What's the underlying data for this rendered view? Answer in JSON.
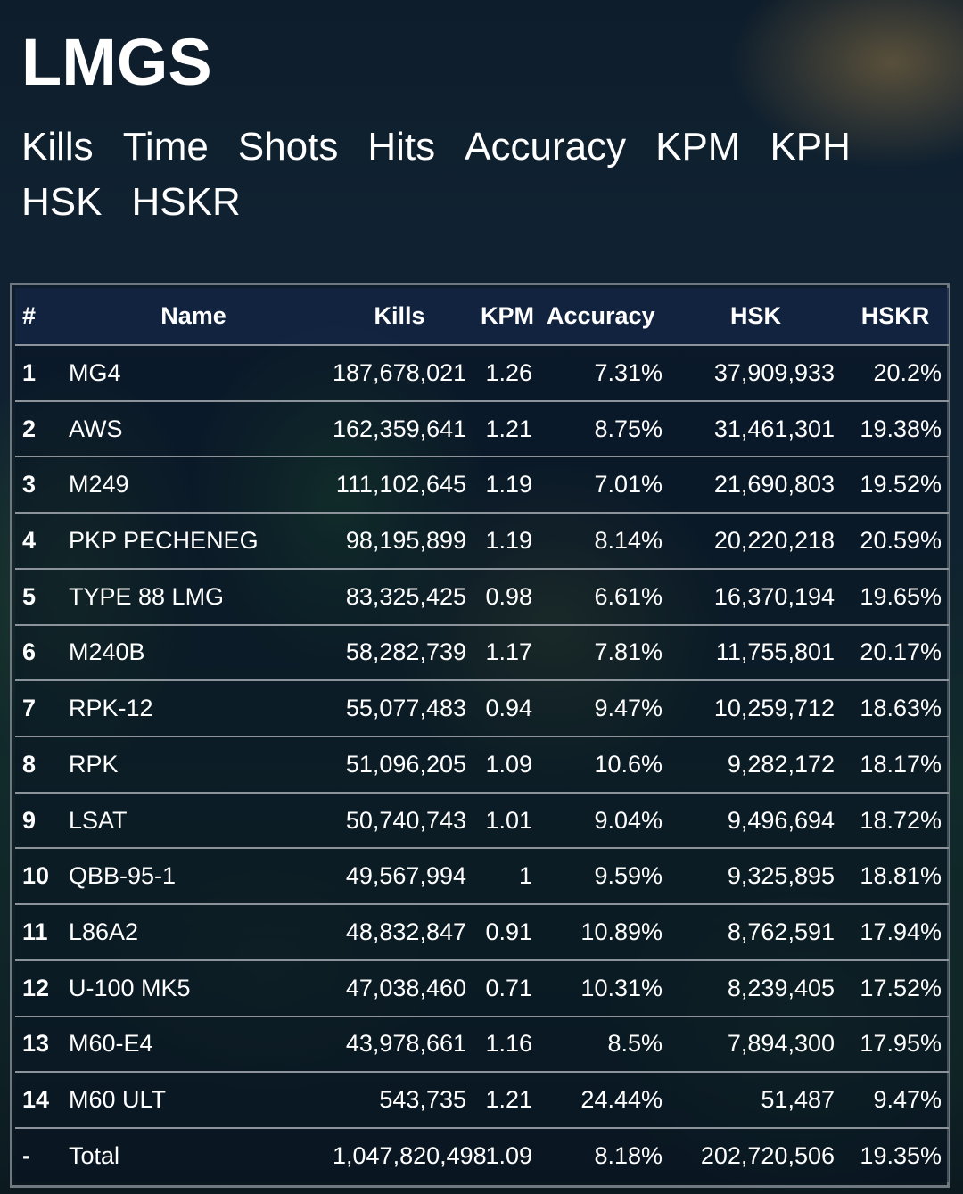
{
  "page": {
    "title": "LMGS"
  },
  "nav": [
    "Kills",
    "Time",
    "Shots",
    "Hits",
    "Accuracy",
    "KPM",
    "KPH",
    "HSK",
    "HSKR"
  ],
  "table": {
    "headers": {
      "rank": "#",
      "name": "Name",
      "kills": "Kills",
      "kpm": "KPM",
      "accuracy": "Accuracy",
      "hsk": "HSK",
      "hskr": "HSKR"
    },
    "rows": [
      {
        "rank": "1",
        "name": "MG4",
        "kills": "187,678,021",
        "kpm": "1.26",
        "accuracy": "7.31%",
        "hsk": "37,909,933",
        "hskr": "20.2%"
      },
      {
        "rank": "2",
        "name": "AWS",
        "kills": "162,359,641",
        "kpm": "1.21",
        "accuracy": "8.75%",
        "hsk": "31,461,301",
        "hskr": "19.38%"
      },
      {
        "rank": "3",
        "name": "M249",
        "kills": "111,102,645",
        "kpm": "1.19",
        "accuracy": "7.01%",
        "hsk": "21,690,803",
        "hskr": "19.52%"
      },
      {
        "rank": "4",
        "name": "PKP PECHENEG",
        "kills": "98,195,899",
        "kpm": "1.19",
        "accuracy": "8.14%",
        "hsk": "20,220,218",
        "hskr": "20.59%"
      },
      {
        "rank": "5",
        "name": "TYPE 88 LMG",
        "kills": "83,325,425",
        "kpm": "0.98",
        "accuracy": "6.61%",
        "hsk": "16,370,194",
        "hskr": "19.65%"
      },
      {
        "rank": "6",
        "name": "M240B",
        "kills": "58,282,739",
        "kpm": "1.17",
        "accuracy": "7.81%",
        "hsk": "11,755,801",
        "hskr": "20.17%"
      },
      {
        "rank": "7",
        "name": "RPK-12",
        "kills": "55,077,483",
        "kpm": "0.94",
        "accuracy": "9.47%",
        "hsk": "10,259,712",
        "hskr": "18.63%"
      },
      {
        "rank": "8",
        "name": "RPK",
        "kills": "51,096,205",
        "kpm": "1.09",
        "accuracy": "10.6%",
        "hsk": "9,282,172",
        "hskr": "18.17%"
      },
      {
        "rank": "9",
        "name": "LSAT",
        "kills": "50,740,743",
        "kpm": "1.01",
        "accuracy": "9.04%",
        "hsk": "9,496,694",
        "hskr": "18.72%"
      },
      {
        "rank": "10",
        "name": "QBB-95-1",
        "kills": "49,567,994",
        "kpm": "1",
        "accuracy": "9.59%",
        "hsk": "9,325,895",
        "hskr": "18.81%"
      },
      {
        "rank": "11",
        "name": "L86A2",
        "kills": "48,832,847",
        "kpm": "0.91",
        "accuracy": "10.89%",
        "hsk": "8,762,591",
        "hskr": "17.94%"
      },
      {
        "rank": "12",
        "name": "U-100 MK5",
        "kills": "47,038,460",
        "kpm": "0.71",
        "accuracy": "10.31%",
        "hsk": "8,239,405",
        "hskr": "17.52%"
      },
      {
        "rank": "13",
        "name": "M60-E4",
        "kills": "43,978,661",
        "kpm": "1.16",
        "accuracy": "8.5%",
        "hsk": "7,894,300",
        "hskr": "17.95%"
      },
      {
        "rank": "14",
        "name": "M60 ULT",
        "kills": "543,735",
        "kpm": "1.21",
        "accuracy": "24.44%",
        "hsk": "51,487",
        "hskr": "9.47%"
      },
      {
        "rank": "-",
        "name": "Total",
        "kills": "1,047,820,498",
        "kpm": "1.09",
        "accuracy": "8.18%",
        "hsk": "202,720,506",
        "hskr": "19.35%"
      }
    ]
  }
}
